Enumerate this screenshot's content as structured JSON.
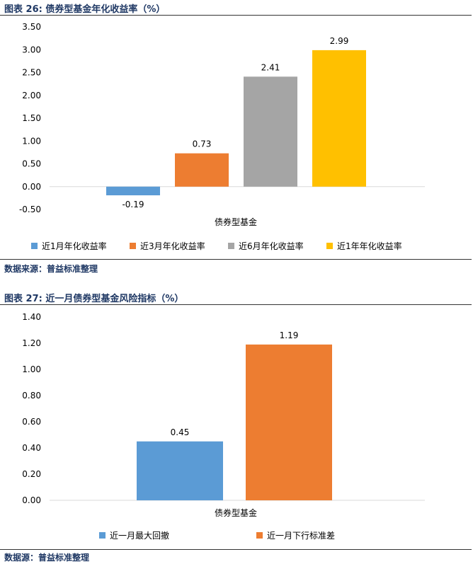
{
  "figures": [
    {
      "title": "图表 26:  债券型基金年化收益率（%）",
      "source": "数据来源：普益标准整理"
    },
    {
      "title": "图表 27:   近一月债券型基金风险指标（%）",
      "source": "数据源：普益标准整理"
    }
  ],
  "chart_data": [
    {
      "type": "bar",
      "categories": [
        "债券型基金"
      ],
      "series": [
        {
          "name": "近1月年化收益率",
          "values": [
            -0.19
          ],
          "color": "#5b9bd5"
        },
        {
          "name": "近3月年化收益率",
          "values": [
            0.73
          ],
          "color": "#ed7d31"
        },
        {
          "name": "近6月年化收益率",
          "values": [
            2.41
          ],
          "color": "#a5a5a5"
        },
        {
          "name": "近1年年化收益率",
          "values": [
            2.99
          ],
          "color": "#ffc000"
        }
      ],
      "ylim": [
        -0.5,
        3.5
      ],
      "yticks": [
        "3.50",
        "3.00",
        "2.50",
        "2.00",
        "1.50",
        "1.00",
        "0.50",
        "0.00",
        "-0.50"
      ],
      "data_labels": [
        "-0.19",
        "0.73",
        "2.41",
        "2.99"
      ],
      "legend_position": "bottom",
      "grid": false
    },
    {
      "type": "bar",
      "categories": [
        "债券型基金"
      ],
      "series": [
        {
          "name": "近一月最大回撤",
          "values": [
            0.45
          ],
          "color": "#5b9bd5"
        },
        {
          "name": "近一月下行标准差",
          "values": [
            1.19
          ],
          "color": "#ed7d31"
        }
      ],
      "ylim": [
        0,
        1.4
      ],
      "yticks": [
        "1.40",
        "1.20",
        "1.00",
        "0.80",
        "0.60",
        "0.40",
        "0.20",
        "0.00"
      ],
      "data_labels": [
        "0.45",
        "1.19"
      ],
      "legend_position": "bottom",
      "grid": false
    }
  ]
}
